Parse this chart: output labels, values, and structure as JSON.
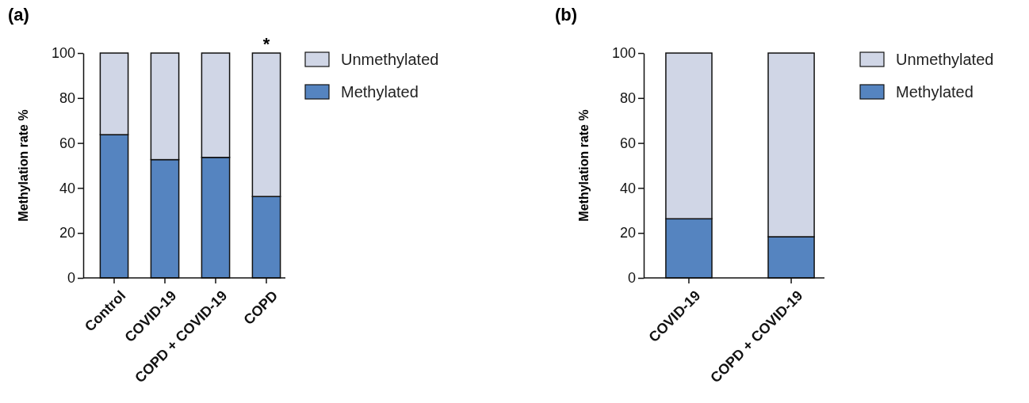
{
  "chart_data": [
    {
      "type": "bar",
      "title": "(a)",
      "ylabel": "Methylation rate %",
      "categories": [
        "Control",
        "COVID-19",
        "COPD + COVID-19",
        "COPD"
      ],
      "stacked": true,
      "series": [
        {
          "name": "Methylated",
          "color": "#5584c0",
          "values": [
            63.7,
            52.6,
            53.6,
            36.2
          ]
        },
        {
          "name": "Unmethylated",
          "color": "#d0d6e6",
          "values": [
            36.3,
            47.4,
            46.4,
            63.8
          ]
        }
      ],
      "ylim": [
        0,
        100
      ],
      "yticks": [
        0,
        20,
        40,
        60,
        80,
        100
      ],
      "legend": "right",
      "grid": false,
      "annotations": [
        {
          "text": "*",
          "x": "COPD",
          "y": 100
        }
      ]
    },
    {
      "type": "bar",
      "title": "(b)",
      "ylabel": "Methylation rate %",
      "categories": [
        "COVID-19",
        "COPD + COVID-19"
      ],
      "stacked": true,
      "series": [
        {
          "name": "Methylated",
          "color": "#5584c0",
          "values": [
            26.3,
            18.3
          ]
        },
        {
          "name": "Unmethylated",
          "color": "#d0d6e6",
          "values": [
            73.7,
            81.7
          ]
        }
      ],
      "ylim": [
        0,
        100
      ],
      "yticks": [
        0,
        20,
        40,
        60,
        80,
        100
      ],
      "legend": "right",
      "grid": false
    }
  ]
}
